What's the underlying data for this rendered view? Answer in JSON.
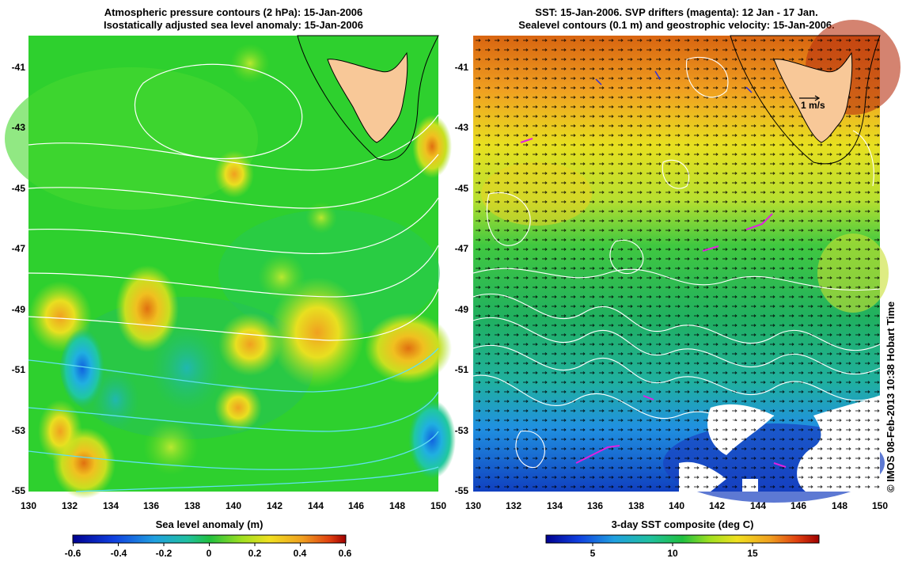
{
  "left_panel": {
    "title_line1": "Atmospheric pressure contours (2 hPa): 15-Jan-2006",
    "title_line2": "Isostatically adjusted sea level anomaly: 15-Jan-2006",
    "colorbar_label": "Sea level anomaly (m)",
    "colorbar_ticks": [
      "-0.6",
      "-0.4",
      "-0.2",
      "0",
      "0.2",
      "0.4",
      "0.6"
    ]
  },
  "right_panel": {
    "title_line1": "SST: 15-Jan-2006. SVP drifters (magenta): 12 Jan - 17 Jan.",
    "title_line2": "Sealevel contours (0.1 m) and geostrophic velocity: 15-Jan-2006.",
    "scale_arrow_label": "1 m/s",
    "colorbar_label": "3-day SST composite (deg C)",
    "colorbar_ticks": [
      "5",
      "10",
      "15"
    ]
  },
  "axes": {
    "y_ticks": [
      "-41",
      "-43",
      "-45",
      "-47",
      "-49",
      "-51",
      "-53",
      "-55"
    ],
    "x_ticks": [
      "130",
      "132",
      "134",
      "136",
      "138",
      "140",
      "142",
      "144",
      "146",
      "148",
      "150"
    ]
  },
  "credit": "© IMOS 08-Feb-2013 10:38 Hobart Time",
  "colors": {
    "land": "#f8c898",
    "contour": "#ffffff",
    "drifters": "#e020e0"
  }
}
